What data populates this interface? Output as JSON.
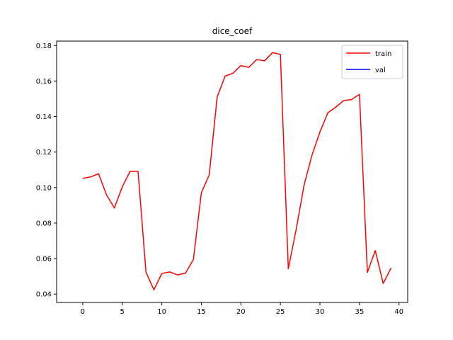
{
  "chart_data": {
    "type": "line",
    "title": "dice_coef",
    "xlabel": "",
    "ylabel": "",
    "xlim": [
      -3.3,
      41.1
    ],
    "ylim": [
      0.0353,
      0.1825
    ],
    "xticks": [
      0,
      5,
      10,
      15,
      20,
      25,
      30,
      35,
      40
    ],
    "yticks": [
      0.04,
      0.06,
      0.08,
      0.1,
      0.12,
      0.14,
      0.16,
      0.18
    ],
    "ytick_labels": [
      "0.04",
      "0.06",
      "0.08",
      "0.10",
      "0.12",
      "0.14",
      "0.16",
      "0.18"
    ],
    "grid": false,
    "legend_position": "top-right",
    "series": [
      {
        "name": "train",
        "color": "#ff0000",
        "x": [
          0,
          1,
          2,
          3,
          4,
          5,
          6,
          7,
          8,
          9,
          10,
          11,
          12,
          13,
          14,
          15,
          16,
          17,
          18,
          19,
          20,
          21,
          22,
          23,
          24,
          25,
          26,
          27,
          28,
          29,
          30,
          31,
          32,
          33,
          34,
          35,
          36,
          37,
          38,
          39
        ],
        "values": [
          0.1052,
          0.106,
          0.1078,
          0.096,
          0.0885,
          0.1004,
          0.1092,
          0.1091,
          0.0524,
          0.0424,
          0.0516,
          0.0525,
          0.0508,
          0.0518,
          0.0595,
          0.097,
          0.1072,
          0.151,
          0.1627,
          0.1644,
          0.1687,
          0.1677,
          0.1721,
          0.1714,
          0.176,
          0.175,
          0.0543,
          0.0765,
          0.1015,
          0.1183,
          0.1313,
          0.1421,
          0.1453,
          0.149,
          0.1496,
          0.1525,
          0.0522,
          0.0645,
          0.046,
          0.0547
        ]
      },
      {
        "name": "val",
        "color": "#0000ff",
        "x": [],
        "values": []
      }
    ]
  }
}
